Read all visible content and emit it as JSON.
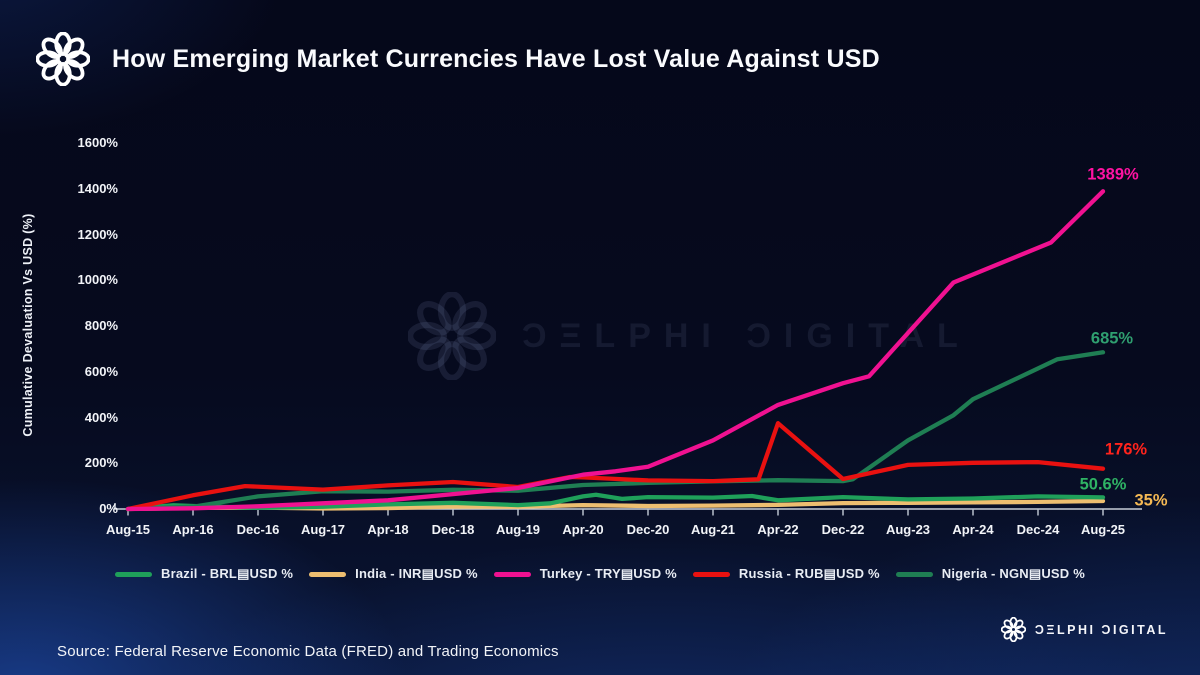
{
  "header": {
    "title": "How Emerging Market Currencies Have Lost Value Against USD"
  },
  "watermark": {
    "text": "ƆΞLPHI ƆIGITAL"
  },
  "footer": {
    "source": "Source: Federal Reserve Economic Data (FRED) and Trading Economics",
    "brand": "ƆΞLPHI ƆIGITAL"
  },
  "chart_data": {
    "type": "line",
    "title": "How Emerging Market Currencies Have Lost Value Against USD",
    "xlabel": "",
    "ylabel": "Cumulative Devaluation Vs USD (%)",
    "ylim": [
      0,
      1600
    ],
    "y_tick_step": 200,
    "y_ticks": [
      "0%",
      "200%",
      "400%",
      "600%",
      "800%",
      "1000%",
      "1200%",
      "1400%",
      "1600%"
    ],
    "grid": false,
    "legend_position": "bottom",
    "categories": [
      "Aug-15",
      "Apr-16",
      "Dec-16",
      "Aug-17",
      "Apr-18",
      "Dec-18",
      "Aug-19",
      "Apr-20",
      "Dec-20",
      "Aug-21",
      "Apr-22",
      "Dec-22",
      "Aug-23",
      "Apr-24",
      "Dec-24",
      "Aug-25"
    ],
    "series": [
      {
        "name": "Brazil",
        "legend_label": "Brazil - BRL▤USD %",
        "color": "#1FA05A",
        "label_color": "#2FB364",
        "end_label": "50.6%",
        "end_value": 50.6,
        "points": [
          [
            0,
            0
          ],
          [
            0.7,
            16
          ],
          [
            1,
            13
          ],
          [
            2,
            5
          ],
          [
            3,
            10
          ],
          [
            4,
            20
          ],
          [
            5,
            27
          ],
          [
            6,
            17
          ],
          [
            6.5,
            25
          ],
          [
            7,
            55
          ],
          [
            7.2,
            62
          ],
          [
            7.6,
            44
          ],
          [
            8,
            52
          ],
          [
            9,
            50
          ],
          [
            9.6,
            57
          ],
          [
            10,
            38
          ],
          [
            11,
            52
          ],
          [
            12,
            42
          ],
          [
            13,
            46
          ],
          [
            14,
            55
          ],
          [
            15,
            50.6
          ]
        ]
      },
      {
        "name": "India",
        "legend_label": "India - INR▤USD %",
        "color": "#EDBE70",
        "label_color": "#F5B954",
        "end_label": "35%",
        "end_value": 35,
        "points": [
          [
            0,
            0
          ],
          [
            1,
            5
          ],
          [
            2,
            6
          ],
          [
            3,
            2
          ],
          [
            4,
            4
          ],
          [
            5,
            11
          ],
          [
            6,
            10
          ],
          [
            7,
            17
          ],
          [
            8,
            13
          ],
          [
            9,
            15
          ],
          [
            10,
            18
          ],
          [
            11,
            26
          ],
          [
            12,
            27
          ],
          [
            13,
            29
          ],
          [
            14,
            31
          ],
          [
            15,
            35
          ]
        ]
      },
      {
        "name": "Turkey",
        "legend_label": "Turkey - TRY▤USD %",
        "color": "#F01191",
        "label_color": "#FF13A2",
        "end_label": "1389%",
        "end_value": 1389,
        "points": [
          [
            0,
            0
          ],
          [
            1,
            3
          ],
          [
            2,
            12
          ],
          [
            3,
            25
          ],
          [
            4,
            38
          ],
          [
            5,
            65
          ],
          [
            6,
            92
          ],
          [
            7,
            150
          ],
          [
            7.5,
            165
          ],
          [
            8,
            185
          ],
          [
            9,
            300
          ],
          [
            10,
            455
          ],
          [
            11,
            550
          ],
          [
            11.4,
            580
          ],
          [
            12.7,
            990
          ],
          [
            14.2,
            1165
          ],
          [
            15,
            1389
          ]
        ]
      },
      {
        "name": "Russia",
        "legend_label": "Russia - RUB▤USD %",
        "color": "#E91110",
        "label_color": "#FF231C",
        "end_label": "176%",
        "end_value": 176,
        "points": [
          [
            0,
            0
          ],
          [
            1,
            60
          ],
          [
            1.8,
            100
          ],
          [
            3,
            85
          ],
          [
            4,
            103
          ],
          [
            5,
            118
          ],
          [
            6,
            96
          ],
          [
            6.8,
            140
          ],
          [
            7,
            138
          ],
          [
            8,
            125
          ],
          [
            9,
            122
          ],
          [
            9.7,
            130
          ],
          [
            10,
            375
          ],
          [
            11,
            131
          ],
          [
            12,
            193
          ],
          [
            13,
            202
          ],
          [
            14,
            205
          ],
          [
            15,
            176
          ]
        ]
      },
      {
        "name": "Nigeria",
        "legend_label": "Nigeria - NGN▤USD %",
        "color": "#1F7E53",
        "label_color": "#2F9F70",
        "end_label": "685%",
        "end_value": 685,
        "points": [
          [
            0,
            0
          ],
          [
            1,
            10
          ],
          [
            2,
            55
          ],
          [
            3,
            78
          ],
          [
            4,
            76
          ],
          [
            5,
            84
          ],
          [
            6,
            80
          ],
          [
            7,
            105
          ],
          [
            8,
            114
          ],
          [
            9,
            121
          ],
          [
            10,
            126
          ],
          [
            11,
            122
          ],
          [
            11.15,
            130
          ],
          [
            12,
            300
          ],
          [
            12.7,
            410
          ],
          [
            13,
            480
          ],
          [
            14.3,
            655
          ],
          [
            15,
            685
          ]
        ]
      }
    ]
  }
}
